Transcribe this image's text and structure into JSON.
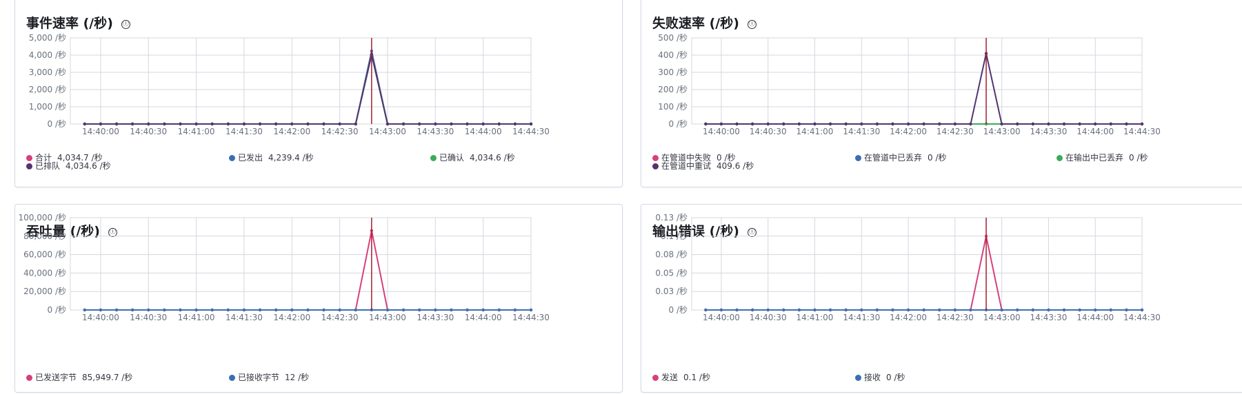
{
  "colors": {
    "pink": "#d6407c",
    "blue": "#3c6fb0",
    "green": "#3bab5a",
    "purple": "#54346f",
    "cursor": "#a51d2d",
    "grid": "#d3d7de"
  },
  "info_icon": "ⓘ",
  "panels": [
    {
      "title": "事件速率 (/秒)",
      "legend": [
        {
          "label": "合计",
          "value": "4,034.7 /秒",
          "color": "#d6407c"
        },
        {
          "label": "已发出",
          "value": "4,239.4 /秒",
          "color": "#3c6fb0"
        },
        {
          "label": "已确认",
          "value": "4,034.6 /秒",
          "color": "#3bab5a"
        },
        {
          "label": "已排队",
          "value": "4,034.6 /秒",
          "color": "#54346f"
        }
      ]
    },
    {
      "title": "失败速率 (/秒)",
      "legend": [
        {
          "label": "在管道中失败",
          "value": "0 /秒",
          "color": "#d6407c"
        },
        {
          "label": "在管道中已丢弃",
          "value": "0 /秒",
          "color": "#3c6fb0"
        },
        {
          "label": "在输出中已丢弃",
          "value": "0 /秒",
          "color": "#3bab5a"
        },
        {
          "label": "在管道中重试",
          "value": "409.6 /秒",
          "color": "#54346f"
        }
      ]
    },
    {
      "title": "吞吐量 (/秒)",
      "legend": [
        {
          "label": "已发送字节",
          "value": "85,949.7 /秒",
          "color": "#d6407c"
        },
        {
          "label": "已接收字节",
          "value": "12 /秒",
          "color": "#3c6fb0"
        }
      ]
    },
    {
      "title": "输出错误 (/秒)",
      "legend": [
        {
          "label": "发送",
          "value": "0.1 /秒",
          "color": "#d6407c"
        },
        {
          "label": "接收",
          "value": "0 /秒",
          "color": "#3c6fb0"
        }
      ]
    }
  ],
  "chart_data": [
    {
      "type": "line",
      "title": "事件速率 (/秒)",
      "x_ticks": [
        "14:40:00",
        "14:40:30",
        "14:41:00",
        "14:41:30",
        "14:42:00",
        "14:42:30",
        "14:43:00",
        "14:43:30",
        "14:44:00",
        "14:44:30"
      ],
      "y_ticks": [
        "0 /秒",
        "1,000 /秒",
        "2,000 /秒",
        "3,000 /秒",
        "4,000 /秒",
        "5,000 /秒"
      ],
      "ylim": [
        0,
        5000
      ],
      "cursor_x": "14:42:50",
      "x": [
        "14:39:50",
        "14:40:00",
        "14:40:10",
        "14:40:20",
        "14:40:30",
        "14:40:40",
        "14:40:50",
        "14:41:00",
        "14:41:10",
        "14:41:20",
        "14:41:30",
        "14:41:40",
        "14:41:50",
        "14:42:00",
        "14:42:10",
        "14:42:20",
        "14:42:30",
        "14:42:40",
        "14:42:50",
        "14:43:00",
        "14:43:10",
        "14:43:20",
        "14:43:30",
        "14:43:40",
        "14:43:50",
        "14:44:00",
        "14:44:10",
        "14:44:20",
        "14:44:30"
      ],
      "series": [
        {
          "name": "合计",
          "color": "#d6407c",
          "values": [
            0,
            0,
            0,
            0,
            0,
            0,
            0,
            0,
            0,
            0,
            0,
            0,
            0,
            0,
            0,
            0,
            0,
            0,
            4034.7,
            0,
            0,
            0,
            0,
            0,
            0,
            0,
            0,
            0,
            0
          ]
        },
        {
          "name": "已发出",
          "color": "#3c6fb0",
          "values": [
            0,
            0,
            0,
            0,
            0,
            0,
            0,
            0,
            0,
            0,
            0,
            0,
            0,
            0,
            0,
            0,
            0,
            0,
            4239.4,
            0,
            0,
            0,
            0,
            0,
            0,
            0,
            0,
            0,
            0
          ]
        },
        {
          "name": "已确认",
          "color": "#3bab5a",
          "values": [
            0,
            0,
            0,
            0,
            0,
            0,
            0,
            0,
            0,
            0,
            0,
            0,
            0,
            0,
            0,
            0,
            0,
            0,
            4034.6,
            0,
            0,
            0,
            0,
            0,
            0,
            0,
            0,
            0,
            0
          ]
        },
        {
          "name": "已排队",
          "color": "#54346f",
          "values": [
            0,
            0,
            0,
            0,
            0,
            0,
            0,
            0,
            0,
            0,
            0,
            0,
            0,
            0,
            0,
            0,
            0,
            0,
            4034.6,
            0,
            0,
            0,
            0,
            0,
            0,
            0,
            0,
            0,
            0
          ]
        }
      ]
    },
    {
      "type": "line",
      "title": "失败速率 (/秒)",
      "x_ticks": [
        "14:40:00",
        "14:40:30",
        "14:41:00",
        "14:41:30",
        "14:42:00",
        "14:42:30",
        "14:43:00",
        "14:43:30",
        "14:44:00",
        "14:44:30"
      ],
      "y_ticks": [
        "0 /秒",
        "100 /秒",
        "200 /秒",
        "300 /秒",
        "400 /秒",
        "500 /秒"
      ],
      "ylim": [
        0,
        500
      ],
      "cursor_x": "14:42:50",
      "x": [
        "14:39:50",
        "14:40:00",
        "14:40:10",
        "14:40:20",
        "14:40:30",
        "14:40:40",
        "14:40:50",
        "14:41:00",
        "14:41:10",
        "14:41:20",
        "14:41:30",
        "14:41:40",
        "14:41:50",
        "14:42:00",
        "14:42:10",
        "14:42:20",
        "14:42:30",
        "14:42:40",
        "14:42:50",
        "14:43:00",
        "14:43:10",
        "14:43:20",
        "14:43:30",
        "14:43:40",
        "14:43:50",
        "14:44:00",
        "14:44:10",
        "14:44:20",
        "14:44:30"
      ],
      "series": [
        {
          "name": "在管道中失败",
          "color": "#d6407c",
          "values": [
            0,
            0,
            0,
            0,
            0,
            0,
            0,
            0,
            0,
            0,
            0,
            0,
            0,
            0,
            0,
            0,
            0,
            0,
            0,
            0,
            0,
            0,
            0,
            0,
            0,
            0,
            0,
            0,
            0
          ]
        },
        {
          "name": "在管道中已丢弃",
          "color": "#3c6fb0",
          "values": [
            0,
            0,
            0,
            0,
            0,
            0,
            0,
            0,
            0,
            0,
            0,
            0,
            0,
            0,
            0,
            0,
            0,
            0,
            0,
            0,
            0,
            0,
            0,
            0,
            0,
            0,
            0,
            0,
            0
          ]
        },
        {
          "name": "在输出中已丢弃",
          "color": "#3bab5a",
          "values": [
            0,
            0,
            0,
            0,
            0,
            0,
            0,
            0,
            0,
            0,
            0,
            0,
            0,
            0,
            0,
            0,
            0,
            0,
            0,
            0,
            0,
            0,
            0,
            0,
            0,
            0,
            0,
            0,
            0
          ]
        },
        {
          "name": "在管道中重试",
          "color": "#54346f",
          "values": [
            0,
            0,
            0,
            0,
            0,
            0,
            0,
            0,
            0,
            0,
            0,
            0,
            0,
            0,
            0,
            0,
            0,
            0,
            409.6,
            0,
            0,
            0,
            0,
            0,
            0,
            0,
            0,
            0,
            0
          ]
        }
      ]
    },
    {
      "type": "line",
      "title": "吞吐量 (/秒)",
      "x_ticks": [
        "14:40:00",
        "14:40:30",
        "14:41:00",
        "14:41:30",
        "14:42:00",
        "14:42:30",
        "14:43:00",
        "14:43:30",
        "14:44:00",
        "14:44:30"
      ],
      "y_ticks": [
        "0 /秒",
        "20,000 /秒",
        "40,000 /秒",
        "60,000 /秒",
        "80,000 /秒",
        "100,000 /秒"
      ],
      "ylim": [
        0,
        100000
      ],
      "cursor_x": "14:42:50",
      "x": [
        "14:39:50",
        "14:40:00",
        "14:40:10",
        "14:40:20",
        "14:40:30",
        "14:40:40",
        "14:40:50",
        "14:41:00",
        "14:41:10",
        "14:41:20",
        "14:41:30",
        "14:41:40",
        "14:41:50",
        "14:42:00",
        "14:42:10",
        "14:42:20",
        "14:42:30",
        "14:42:40",
        "14:42:50",
        "14:43:00",
        "14:43:10",
        "14:43:20",
        "14:43:30",
        "14:43:40",
        "14:43:50",
        "14:44:00",
        "14:44:10",
        "14:44:20",
        "14:44:30"
      ],
      "series": [
        {
          "name": "已发送字节",
          "color": "#d6407c",
          "values": [
            0,
            0,
            0,
            0,
            0,
            0,
            0,
            0,
            0,
            0,
            0,
            0,
            0,
            0,
            0,
            0,
            0,
            0,
            85949.7,
            0,
            0,
            0,
            0,
            0,
            0,
            0,
            0,
            0,
            0
          ]
        },
        {
          "name": "已接收字节",
          "color": "#3c6fb0",
          "values": [
            0,
            0,
            0,
            0,
            0,
            0,
            0,
            0,
            0,
            0,
            0,
            0,
            0,
            0,
            0,
            0,
            0,
            0,
            12,
            0,
            0,
            0,
            0,
            0,
            0,
            0,
            0,
            0,
            0
          ]
        }
      ]
    },
    {
      "type": "line",
      "title": "输出错误 (/秒)",
      "x_ticks": [
        "14:40:00",
        "14:40:30",
        "14:41:00",
        "14:41:30",
        "14:42:00",
        "14:42:30",
        "14:43:00",
        "14:43:30",
        "14:44:00",
        "14:44:30"
      ],
      "y_ticks": [
        "0 /秒",
        "0.03 /秒",
        "0.05 /秒",
        "0.08 /秒",
        "0.1 /秒",
        "0.13 /秒"
      ],
      "ylim": [
        0,
        0.125
      ],
      "cursor_x": "14:42:50",
      "x": [
        "14:39:50",
        "14:40:00",
        "14:40:10",
        "14:40:20",
        "14:40:30",
        "14:40:40",
        "14:40:50",
        "14:41:00",
        "14:41:10",
        "14:41:20",
        "14:41:30",
        "14:41:40",
        "14:41:50",
        "14:42:00",
        "14:42:10",
        "14:42:20",
        "14:42:30",
        "14:42:40",
        "14:42:50",
        "14:43:00",
        "14:43:10",
        "14:43:20",
        "14:43:30",
        "14:43:40",
        "14:43:50",
        "14:44:00",
        "14:44:10",
        "14:44:20",
        "14:44:30"
      ],
      "series": [
        {
          "name": "发送",
          "color": "#d6407c",
          "values": [
            0,
            0,
            0,
            0,
            0,
            0,
            0,
            0,
            0,
            0,
            0,
            0,
            0,
            0,
            0,
            0,
            0,
            0,
            0.1,
            0,
            0,
            0,
            0,
            0,
            0,
            0,
            0,
            0,
            0
          ]
        },
        {
          "name": "接收",
          "color": "#3c6fb0",
          "values": [
            0,
            0,
            0,
            0,
            0,
            0,
            0,
            0,
            0,
            0,
            0,
            0,
            0,
            0,
            0,
            0,
            0,
            0,
            0,
            0,
            0,
            0,
            0,
            0,
            0,
            0,
            0,
            0,
            0
          ]
        }
      ]
    }
  ]
}
